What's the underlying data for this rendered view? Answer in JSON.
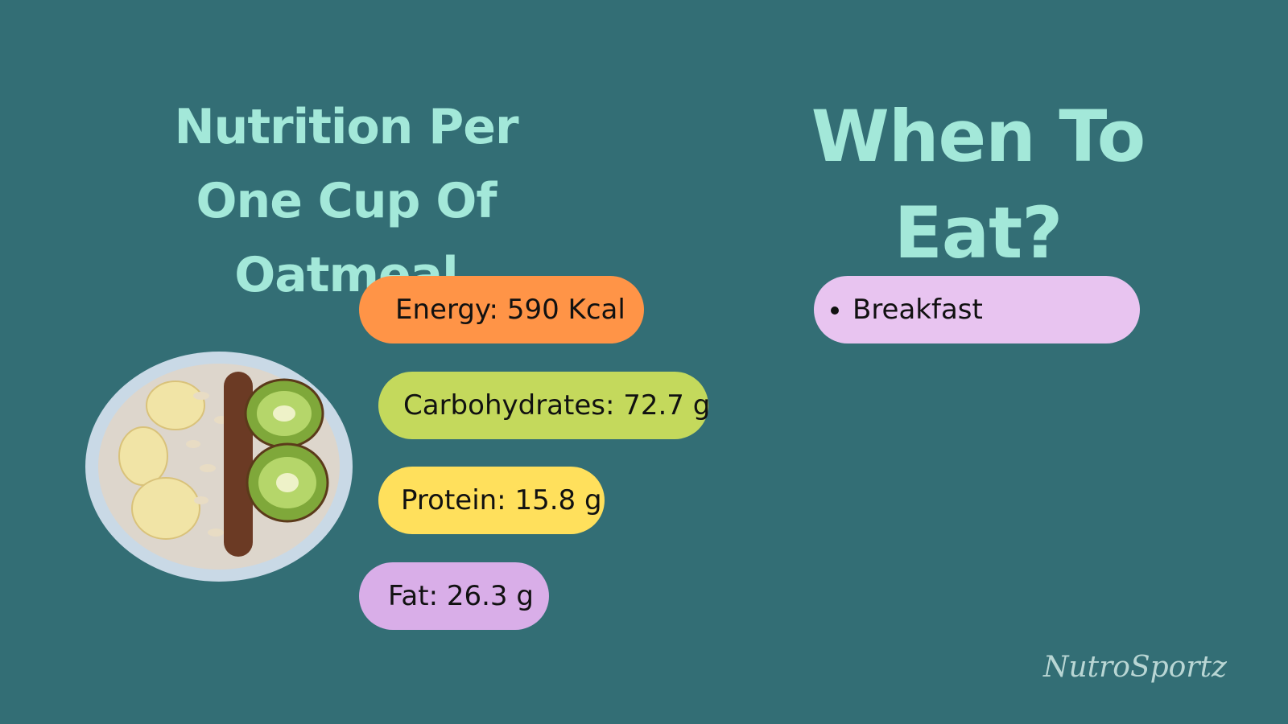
{
  "left": {
    "title": "Nutrition Per One Cup Of Oatmeal",
    "items": [
      "Energy: 590 Kcal",
      "Carbohydrates: 72.7 g",
      "Protein: 15.8 g",
      "Fat: 26.3 g"
    ]
  },
  "right": {
    "title": "When To Eat?",
    "items": [
      "Breakfast"
    ]
  },
  "brand": "NutroSportz"
}
